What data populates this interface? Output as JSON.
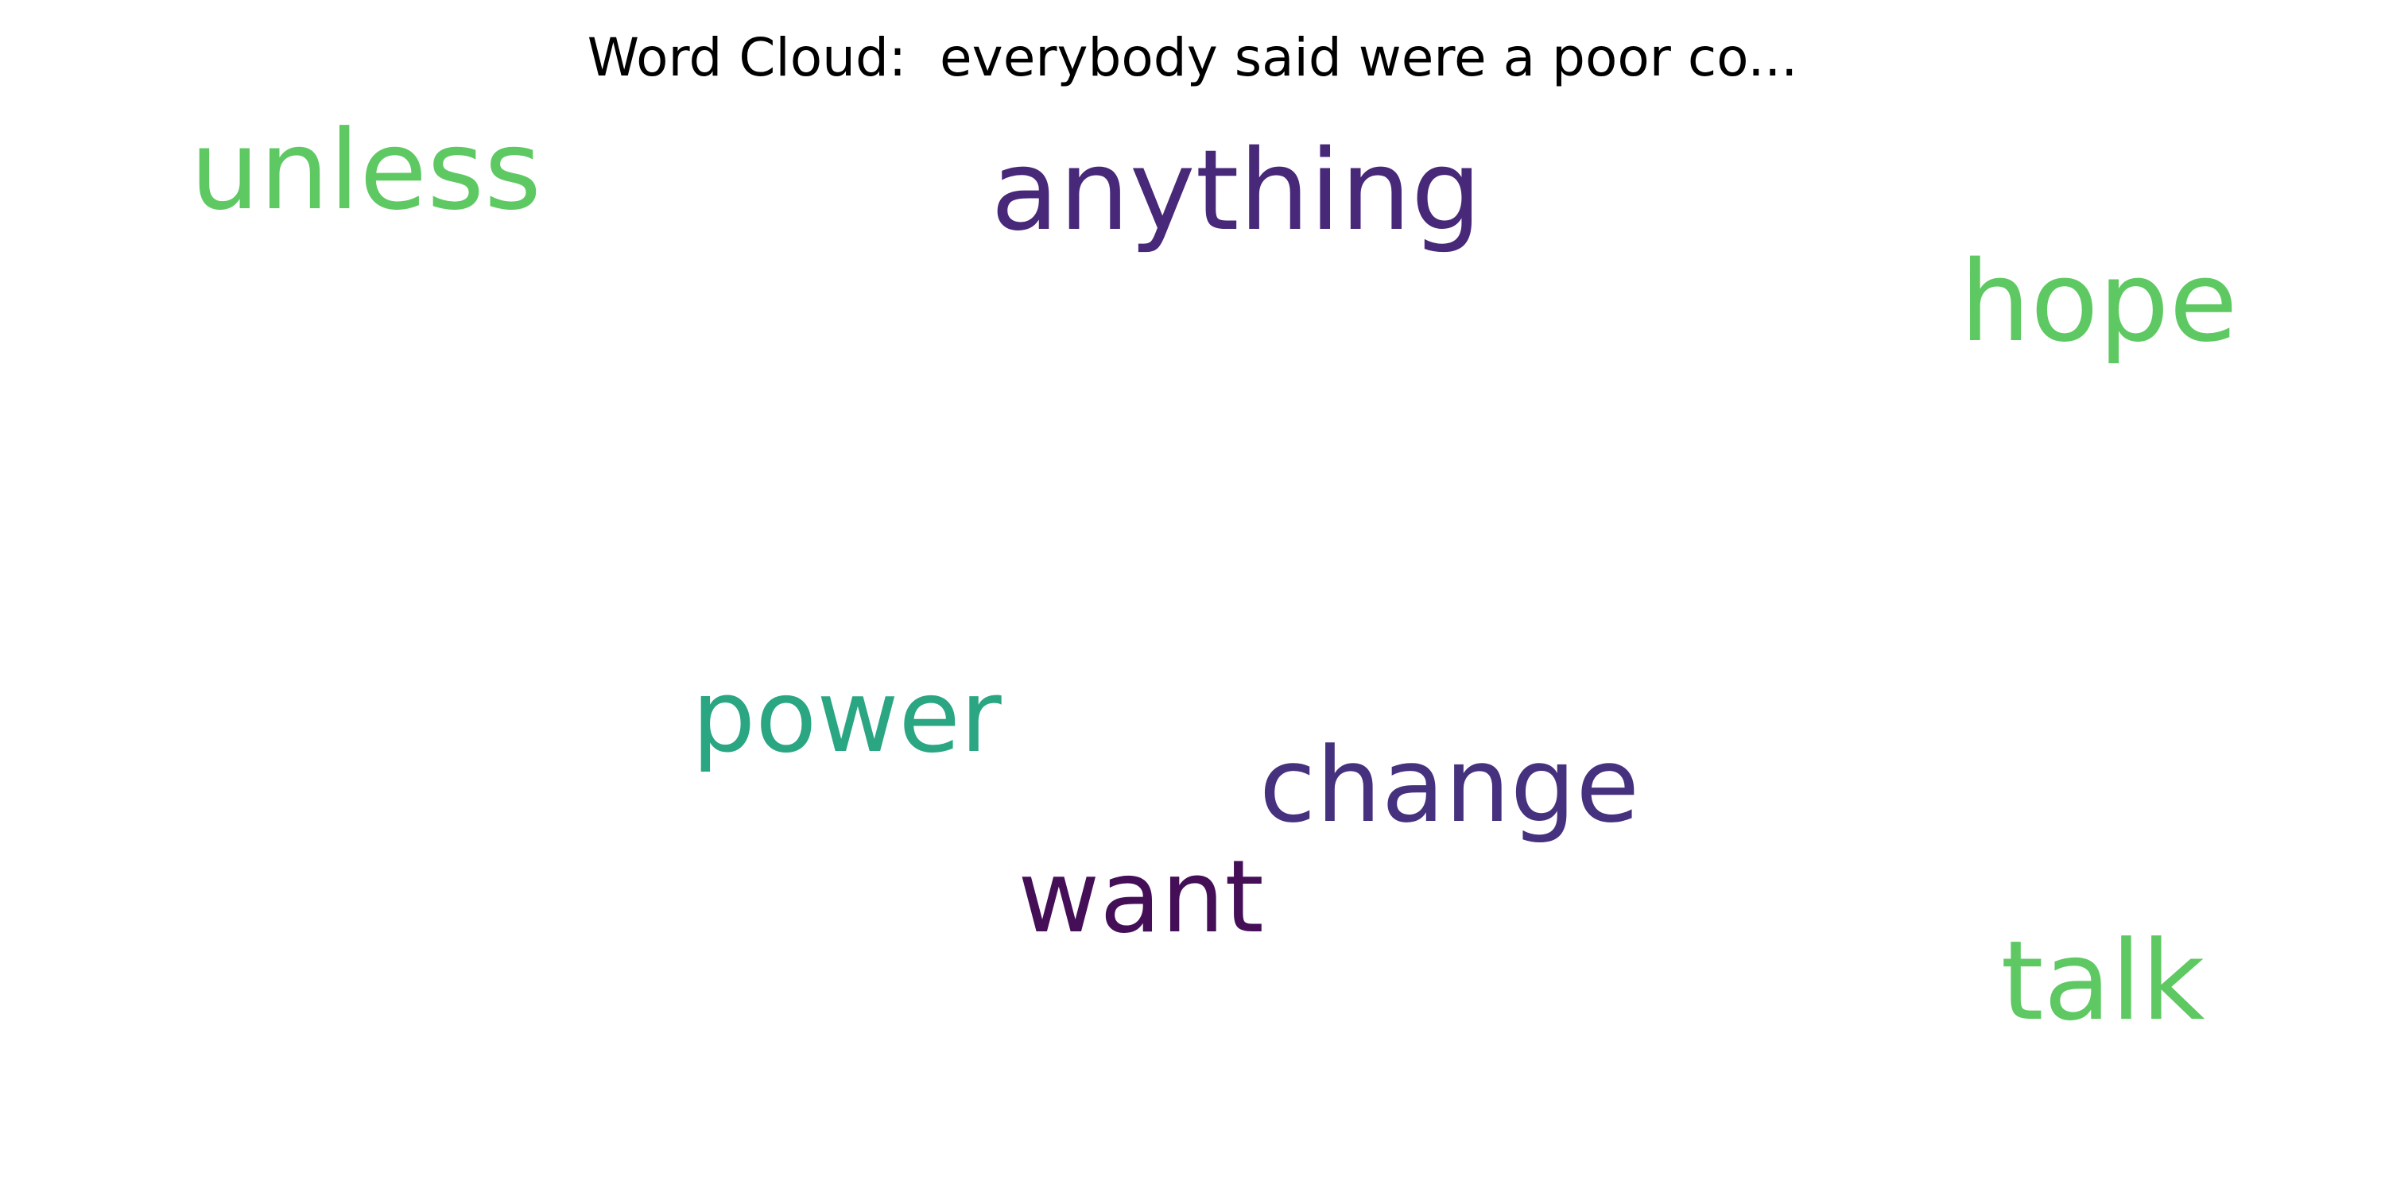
{
  "chart_data": {
    "type": "wordcloud",
    "title": "Word Cloud:  everybody said were a poor co...",
    "words": [
      {
        "text": "anything",
        "color": "#482878"
      },
      {
        "text": "change",
        "color": "#46317e"
      },
      {
        "text": "want",
        "color": "#440f57"
      },
      {
        "text": "unless",
        "color": "#5ec962"
      },
      {
        "text": "hope",
        "color": "#5ec962"
      },
      {
        "text": "talk",
        "color": "#5ec962"
      },
      {
        "text": "power",
        "color": "#2aa682"
      }
    ],
    "grid": false,
    "axes": false
  }
}
